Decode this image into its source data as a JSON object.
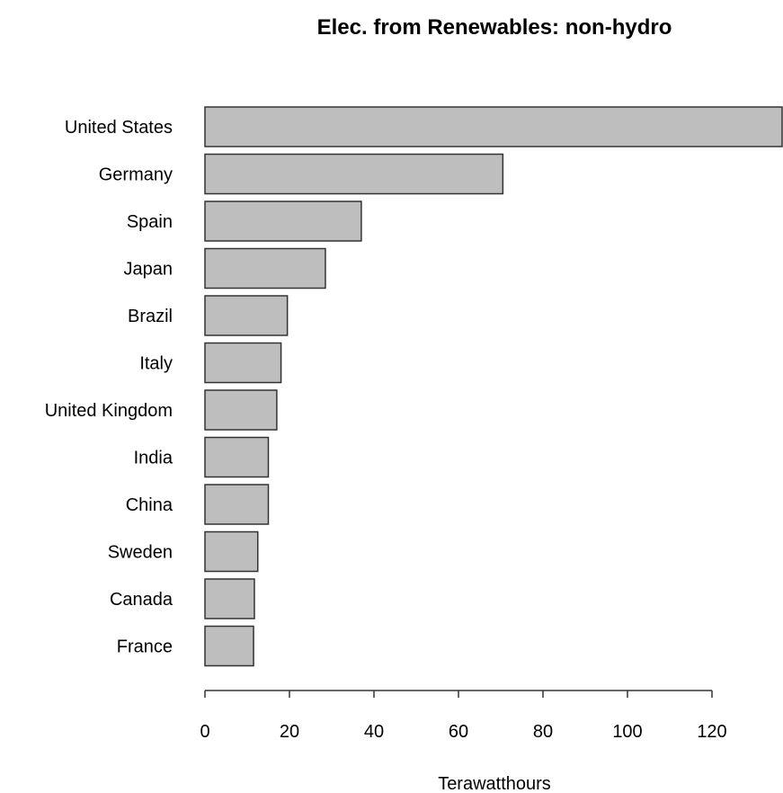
{
  "chart_data": {
    "type": "bar",
    "orientation": "horizontal",
    "title": "Elec. from Renewables: non-hydro",
    "xlabel": "Terawatthours",
    "ylabel": "",
    "categories": [
      "United States",
      "Germany",
      "Spain",
      "Japan",
      "Brazil",
      "Italy",
      "United Kingdom",
      "India",
      "China",
      "Sweden",
      "Canada",
      "France"
    ],
    "values": [
      137,
      70.5,
      37,
      28.5,
      19.5,
      18,
      17,
      15,
      15,
      12.5,
      11.7,
      11.5
    ],
    "xlim": [
      0,
      137
    ],
    "xticks": [
      "0",
      "20",
      "40",
      "60",
      "80",
      "100",
      "120"
    ],
    "xtick_values": [
      0,
      20,
      40,
      60,
      80,
      100,
      120
    ],
    "grid": false,
    "legend": "none",
    "bar_color": "#bebebe",
    "bar_edge_color": "#333333"
  }
}
